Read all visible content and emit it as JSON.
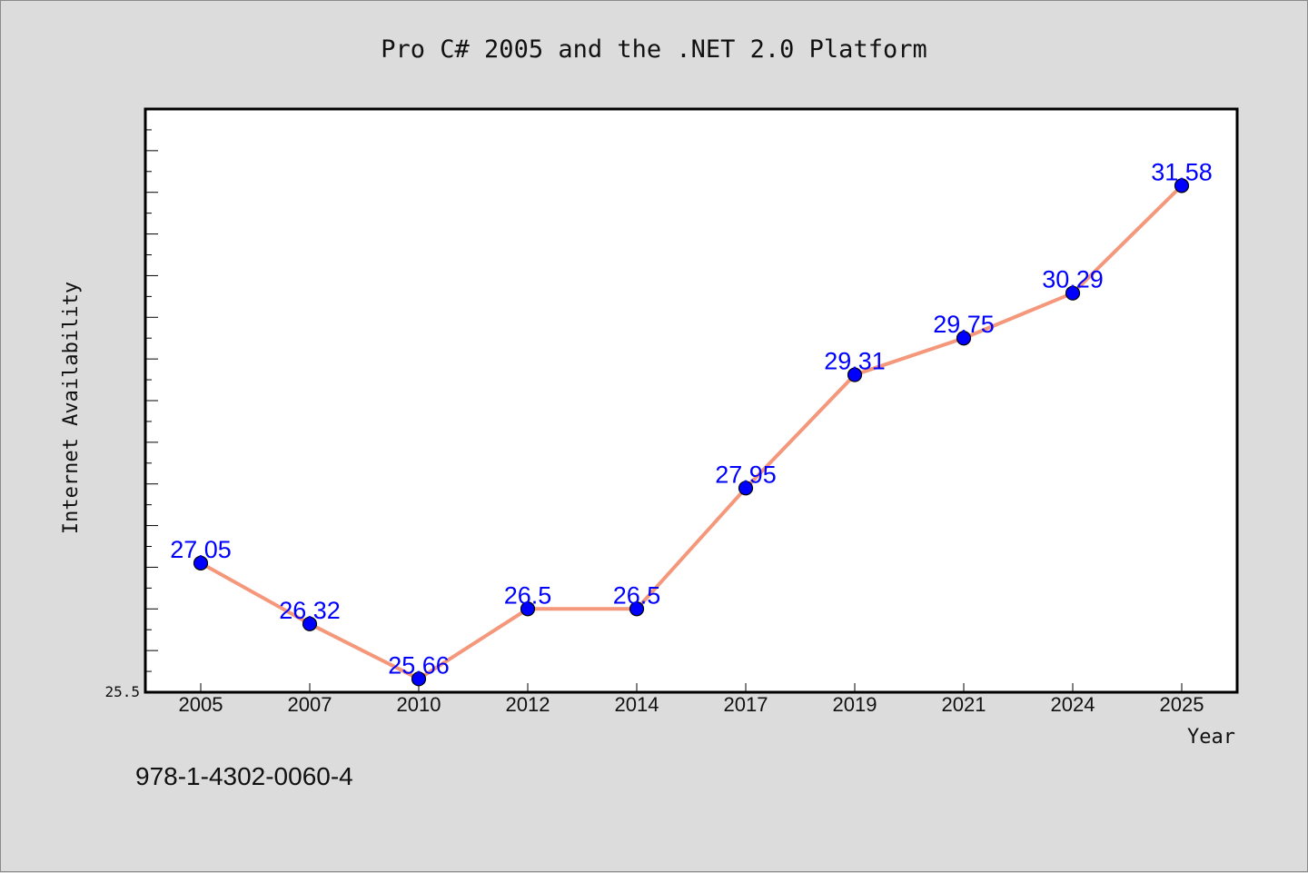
{
  "chart_data": {
    "type": "line",
    "title": "Pro C# 2005 and the .NET 2.0 Platform",
    "xlabel": "Year",
    "ylabel": "Internet Availability",
    "categories": [
      "2005",
      "2007",
      "2010",
      "2012",
      "2014",
      "2017",
      "2019",
      "2021",
      "2024",
      "2025"
    ],
    "series": [
      {
        "values": [
          27.05,
          26.32,
          25.66,
          26.5,
          26.5,
          27.95,
          29.31,
          29.75,
          30.29,
          31.58
        ],
        "labels": [
          "27.05",
          "26.32",
          "25.66",
          "26.5",
          "26.5",
          "27.95",
          "29.31",
          "29.75",
          "30.29",
          "31.58"
        ],
        "line_color": "#f4977a",
        "marker_color": "#0000ff"
      }
    ],
    "ylim": [
      25.5,
      32.5
    ],
    "ytick_labels": [
      "25.5"
    ],
    "grid": false,
    "legend": "none",
    "footer_text": "978-1-4302-0060-4"
  },
  "colors": {
    "background": "#dcdcdc",
    "plot_background": "#ffffff",
    "line": "#f4977a",
    "marker": "#0000ff",
    "data_label": "#0000ff"
  }
}
